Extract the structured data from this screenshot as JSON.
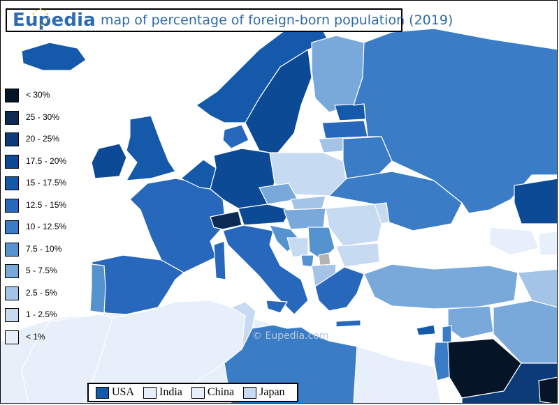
{
  "title": {
    "brand": "Eupedia",
    "text": "map of percentage of foreign-born population (2019)"
  },
  "legend": [
    {
      "label": "< 30%",
      "color": "#061428"
    },
    {
      "label": "25 - 30%",
      "color": "#0c2a54"
    },
    {
      "label": "20 - 25%",
      "color": "#0d3a78"
    },
    {
      "label": "17.5 - 20%",
      "color": "#0d4a95"
    },
    {
      "label": "15 - 17.5%",
      "color": "#155aaa"
    },
    {
      "label": "12.5 - 15%",
      "color": "#2868bc"
    },
    {
      "label": "10 - 12.5%",
      "color": "#3a7cc6"
    },
    {
      "label": "7.5 - 10%",
      "color": "#5592d0"
    },
    {
      "label": "5 - 7.5%",
      "color": "#79a9db"
    },
    {
      "label": "2.5 - 5%",
      "color": "#a3c3e7"
    },
    {
      "label": "1 - 2.5%",
      "color": "#c6daf1"
    },
    {
      "label": "< 1%",
      "color": "#e6effa"
    }
  ],
  "comparison": [
    {
      "label": "USA",
      "color": "#155aaa"
    },
    {
      "label": "India",
      "color": "#e6effa"
    },
    {
      "label": "China",
      "color": "#e6effa"
    },
    {
      "label": "Japan",
      "color": "#c6daf1"
    }
  ],
  "watermark": "©  Eupedia.com",
  "colors": {
    "sea": "#ffffff",
    "no_data": "#b3b3b3",
    "border": "#ffffff"
  }
}
